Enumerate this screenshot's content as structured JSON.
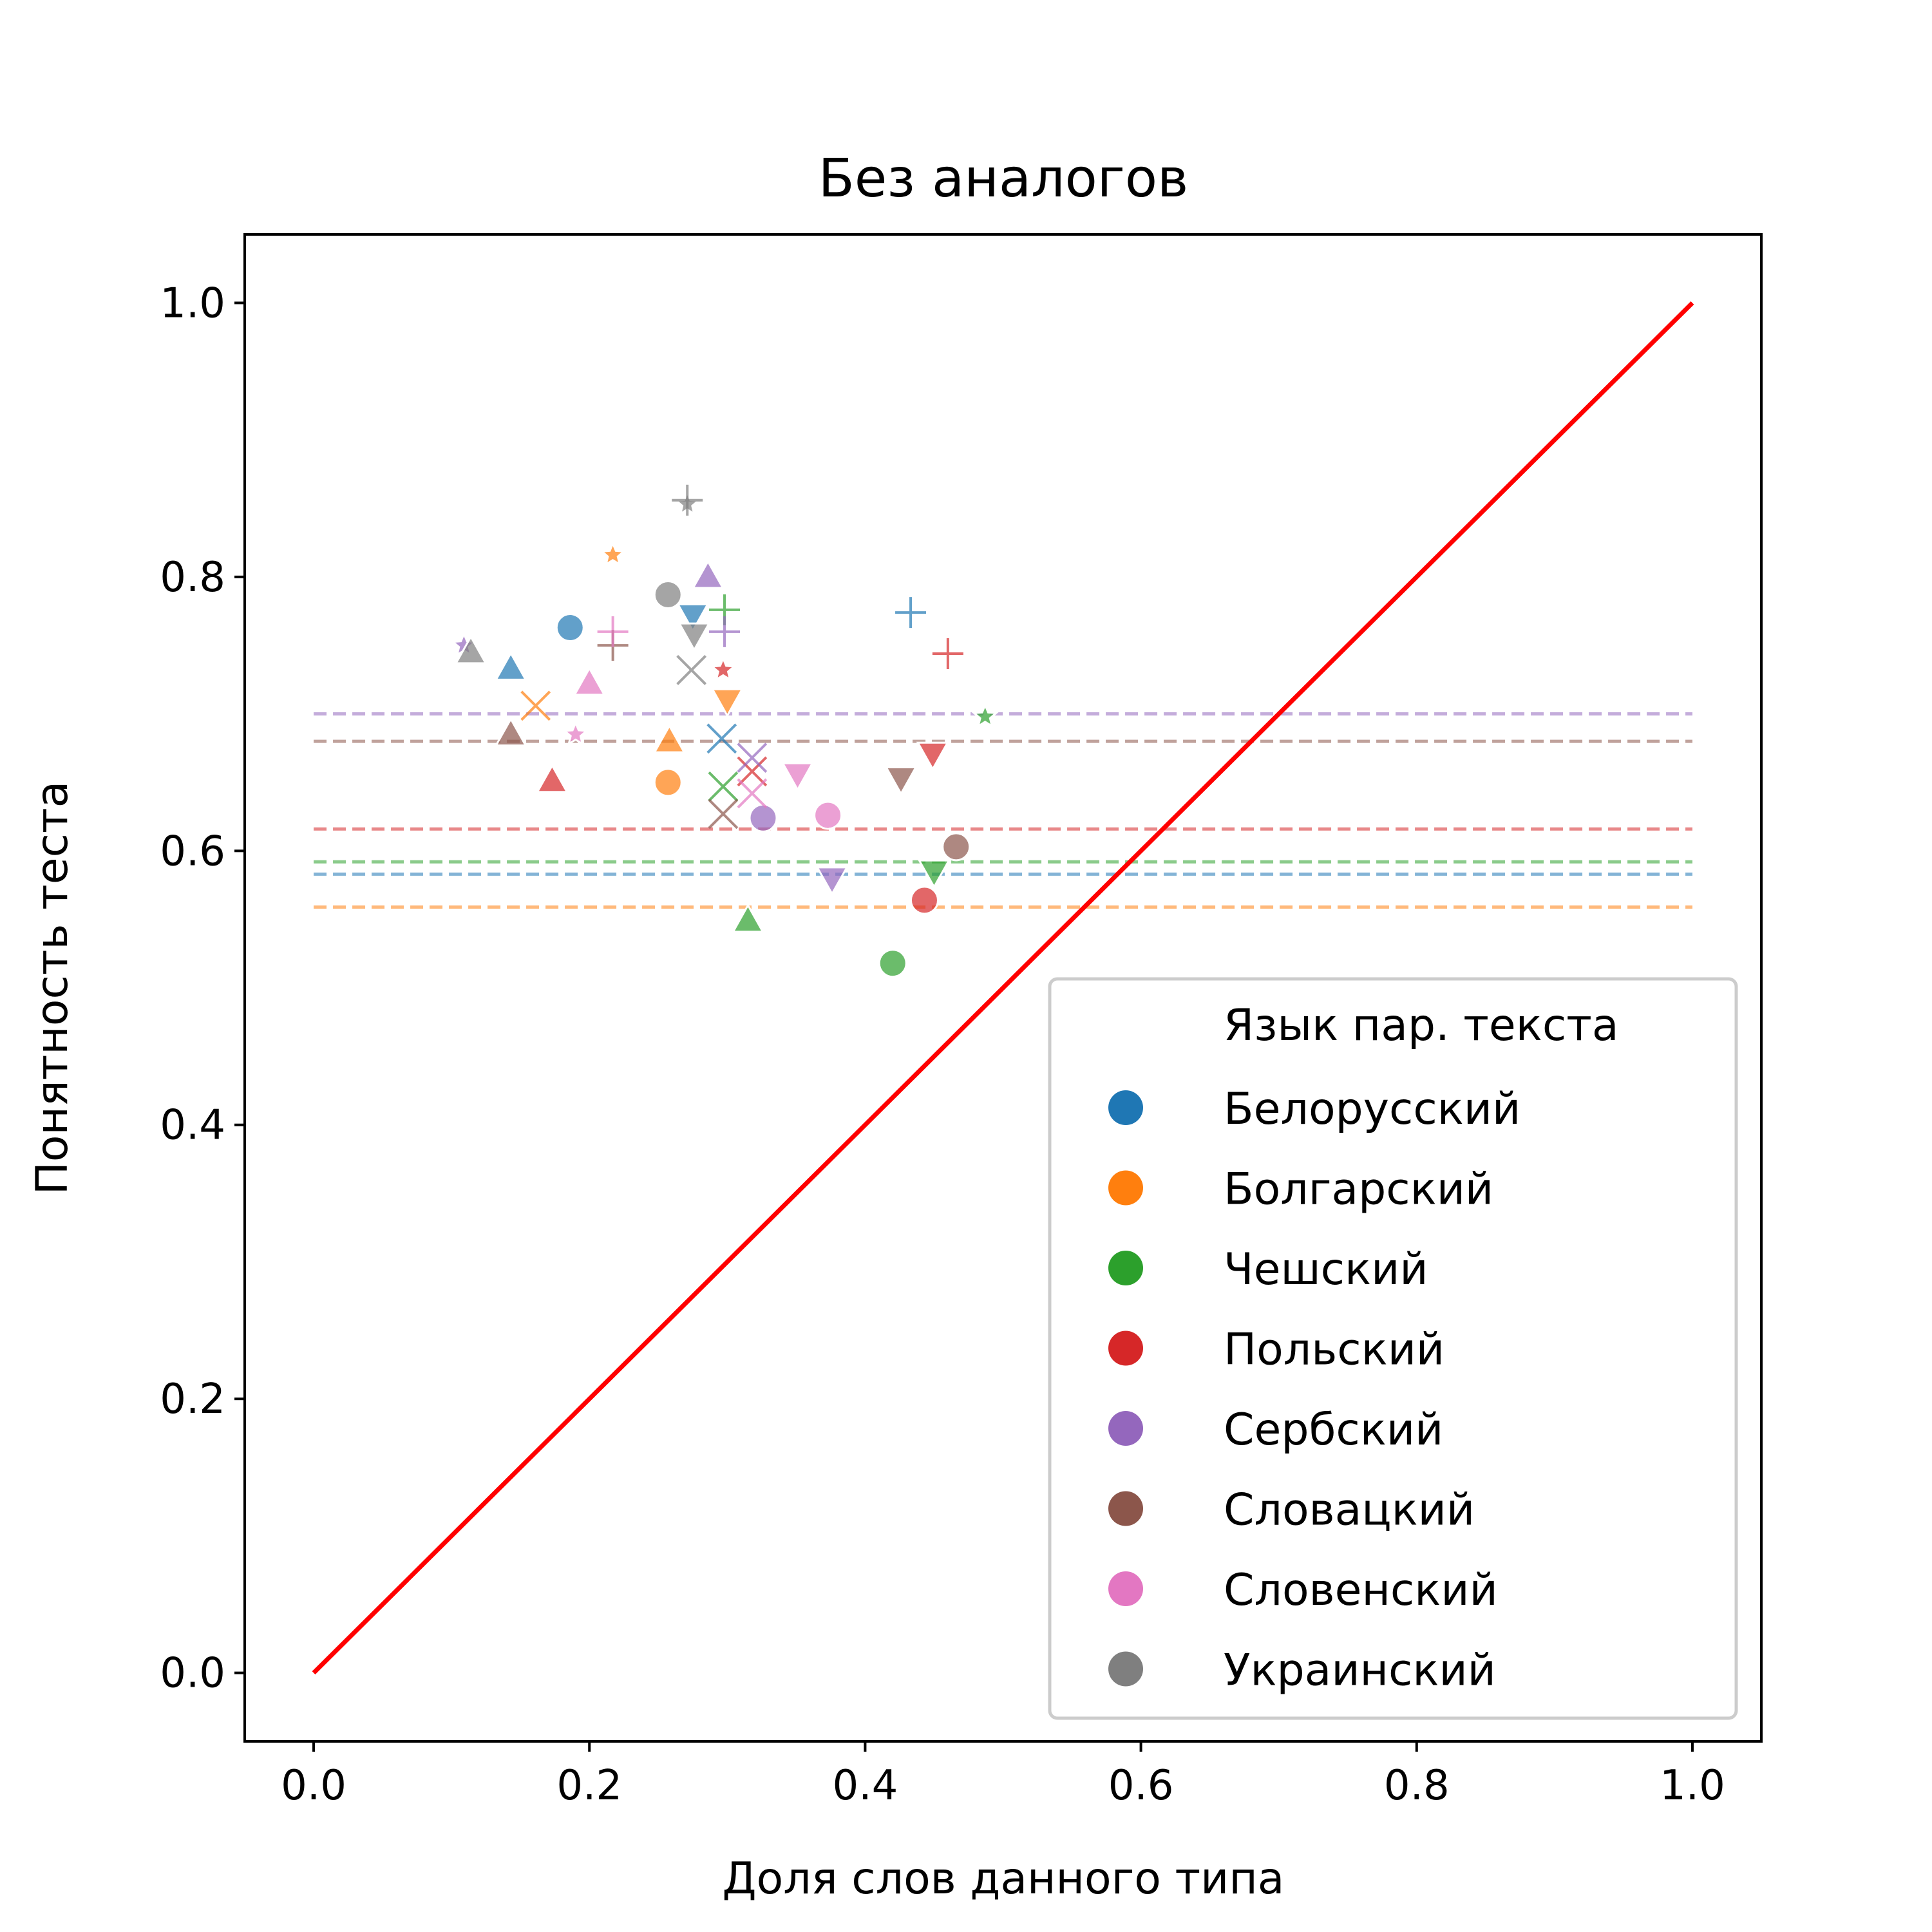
{
  "chart_data": {
    "type": "scatter",
    "title": "Без аналогов",
    "xlabel": "Доля слов данного типа",
    "ylabel": "Понятность теста",
    "xlim": [
      -0.05,
      1.05
    ],
    "ylim": [
      -0.05,
      1.05
    ],
    "xticks": [
      "0.0",
      "0.2",
      "0.4",
      "0.6",
      "0.8",
      "1.0"
    ],
    "yticks": [
      "0.0",
      "0.2",
      "0.4",
      "0.6",
      "0.8",
      "1.0"
    ],
    "grid": false,
    "legend": {
      "title": "Язык пар. текста",
      "position": "bottom-right",
      "marker": "circle",
      "entries": [
        "Белорусский",
        "Болгарский",
        "Чешский",
        "Польский",
        "Сербский",
        "Словацкий",
        "Словенский",
        "Украинский"
      ]
    },
    "reference_line": {
      "x": [
        0,
        1
      ],
      "y": [
        0,
        1
      ],
      "color": "#ff0000"
    },
    "series": [
      {
        "name": "Белорусский",
        "color": "#1f77b4",
        "mean": 0.583,
        "points": [
          {
            "x": 0.186,
            "y": 0.763,
            "marker": "circle"
          },
          {
            "x": 0.143,
            "y": 0.733,
            "marker": "triangle"
          },
          {
            "x": 0.275,
            "y": 0.772,
            "marker": "triangle-down"
          },
          {
            "x": 0.433,
            "y": 0.774,
            "marker": "plus"
          },
          {
            "x": 0.296,
            "y": 0.682,
            "marker": "x"
          }
        ]
      },
      {
        "name": "Болгарский",
        "color": "#ff7f0e",
        "mean": 0.559,
        "points": [
          {
            "x": 0.257,
            "y": 0.65,
            "marker": "circle"
          },
          {
            "x": 0.258,
            "y": 0.68,
            "marker": "triangle"
          },
          {
            "x": 0.3,
            "y": 0.71,
            "marker": "triangle-down"
          },
          {
            "x": 0.217,
            "y": 0.816,
            "marker": "star"
          },
          {
            "x": 0.161,
            "y": 0.706,
            "marker": "x"
          }
        ]
      },
      {
        "name": "Чешский",
        "color": "#2ca02c",
        "mean": 0.592,
        "points": [
          {
            "x": 0.42,
            "y": 0.518,
            "marker": "circle"
          },
          {
            "x": 0.315,
            "y": 0.549,
            "marker": "triangle"
          },
          {
            "x": 0.45,
            "y": 0.585,
            "marker": "triangle-down"
          },
          {
            "x": 0.487,
            "y": 0.698,
            "marker": "star"
          },
          {
            "x": 0.298,
            "y": 0.776,
            "marker": "plus"
          },
          {
            "x": 0.297,
            "y": 0.647,
            "marker": "x"
          }
        ]
      },
      {
        "name": "Польский",
        "color": "#d62728",
        "mean": 0.616,
        "points": [
          {
            "x": 0.443,
            "y": 0.564,
            "marker": "circle"
          },
          {
            "x": 0.173,
            "y": 0.651,
            "marker": "triangle"
          },
          {
            "x": 0.449,
            "y": 0.671,
            "marker": "triangle-down"
          },
          {
            "x": 0.297,
            "y": 0.732,
            "marker": "star"
          },
          {
            "x": 0.46,
            "y": 0.744,
            "marker": "plus"
          },
          {
            "x": 0.318,
            "y": 0.658,
            "marker": "x"
          }
        ]
      },
      {
        "name": "Сербский",
        "color": "#9467bd",
        "mean": 0.7,
        "points": [
          {
            "x": 0.326,
            "y": 0.624,
            "marker": "circle"
          },
          {
            "x": 0.286,
            "y": 0.8,
            "marker": "triangle"
          },
          {
            "x": 0.376,
            "y": 0.58,
            "marker": "triangle-down"
          },
          {
            "x": 0.109,
            "y": 0.75,
            "marker": "star"
          },
          {
            "x": 0.298,
            "y": 0.76,
            "marker": "plus"
          },
          {
            "x": 0.318,
            "y": 0.668,
            "marker": "x"
          }
        ]
      },
      {
        "name": "Словацкий",
        "color": "#8c564b",
        "mean": 0.68,
        "points": [
          {
            "x": 0.466,
            "y": 0.603,
            "marker": "circle"
          },
          {
            "x": 0.143,
            "y": 0.685,
            "marker": "triangle"
          },
          {
            "x": 0.426,
            "y": 0.653,
            "marker": "triangle-down"
          },
          {
            "x": 0.217,
            "y": 0.75,
            "marker": "plus"
          },
          {
            "x": 0.297,
            "y": 0.627,
            "marker": "x"
          }
        ]
      },
      {
        "name": "Словенский",
        "color": "#e377c2",
        "mean": null,
        "points": [
          {
            "x": 0.373,
            "y": 0.626,
            "marker": "circle"
          },
          {
            "x": 0.2,
            "y": 0.722,
            "marker": "triangle"
          },
          {
            "x": 0.351,
            "y": 0.656,
            "marker": "triangle-down"
          },
          {
            "x": 0.19,
            "y": 0.685,
            "marker": "star"
          },
          {
            "x": 0.217,
            "y": 0.76,
            "marker": "plus"
          },
          {
            "x": 0.318,
            "y": 0.642,
            "marker": "x"
          }
        ]
      },
      {
        "name": "Украинский",
        "color": "#7f7f7f",
        "mean": null,
        "points": [
          {
            "x": 0.257,
            "y": 0.787,
            "marker": "circle"
          },
          {
            "x": 0.114,
            "y": 0.745,
            "marker": "triangle"
          },
          {
            "x": 0.276,
            "y": 0.758,
            "marker": "triangle-down"
          },
          {
            "x": 0.271,
            "y": 0.853,
            "marker": "star"
          },
          {
            "x": 0.271,
            "y": 0.856,
            "marker": "plus"
          },
          {
            "x": 0.274,
            "y": 0.732,
            "marker": "x"
          }
        ]
      }
    ]
  }
}
